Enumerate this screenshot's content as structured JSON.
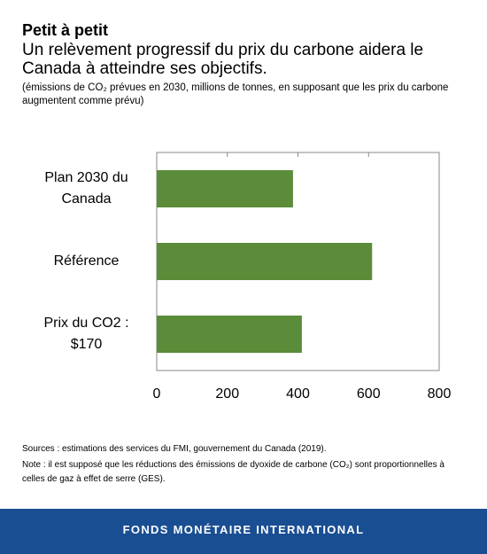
{
  "chart_data": {
    "type": "bar",
    "orientation": "horizontal",
    "title": "Petit à petit",
    "subtitle": "Un relèvement progressif du prix du carbone aidera le Canada à atteindre ses objectifs.",
    "description": "(émissions de CO₂ prévues en 2030, millions de tonnes, en supposant que les prix du carbone augmentent comme prévu)",
    "categories": [
      "Plan 2030 du Canada",
      "Référence",
      "Prix du CO2 : $170"
    ],
    "values": [
      386,
      610,
      411
    ],
    "color": "#5b8c3a",
    "xlim": [
      0,
      800
    ],
    "xticks": [
      0,
      200,
      400,
      600,
      800
    ],
    "grid": false,
    "sources": "Sources : estimations des services du FMI, gouvernement du Canada (2019).",
    "note": "Note : il est supposé que les réductions des émissions de dyoxide de carbone (CO₂) sont proportionnelles à celles de gaz à effet de serre (GES)."
  },
  "footer": "FONDS MONÉTAIRE INTERNATIONAL"
}
